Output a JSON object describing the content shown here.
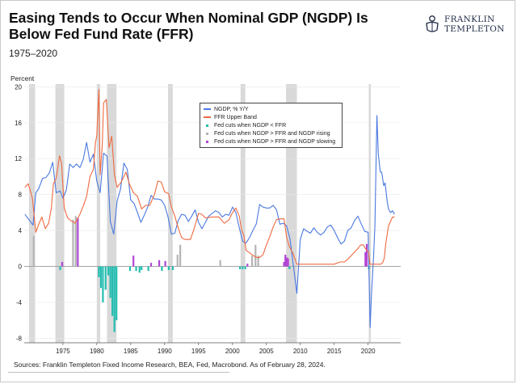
{
  "title": "Easing Tends to Occur When Nominal GDP (NGDP) Is Below Fed Fund Rate (FFR)",
  "subtitle": "1975–2020",
  "logo": {
    "line1": "FRANKLIN",
    "line2": "TEMPLETON",
    "icon": "franklin-seal-icon"
  },
  "source": "Sources: Franklin Templeton Fixed Income Research, BEA, Fed, Macrobond. As of February 28, 2024.",
  "colors": {
    "ngdp": "#4a78e0",
    "ffr": "#ee6a40",
    "cuts_below": "#22bdb0",
    "cuts_rising": "#b4b4b4",
    "cuts_slowing": "#b146d6",
    "recession": "#d9d9d9"
  },
  "chart_data": {
    "type": "line",
    "ylabel": "Percent",
    "ylim": [
      -8.5,
      20.3
    ],
    "xlim": [
      1969.3,
      2024.8
    ],
    "yticks": [
      "20",
      "16",
      "12",
      "8",
      "4",
      "0",
      "-4",
      "-8"
    ],
    "xticks": [
      "1975",
      "1980",
      "1985",
      "1990",
      "1995",
      "2000",
      "2005",
      "2010",
      "2015",
      "2020"
    ],
    "legend": [
      {
        "key": "ngdp",
        "label": "NGDP, % Y/Y",
        "kind": "line"
      },
      {
        "key": "ffr",
        "label": "FFR Upper Band",
        "kind": "line"
      },
      {
        "key": "cuts_below",
        "label": "Fed cuts when NGDP < FFR",
        "kind": "dot"
      },
      {
        "key": "cuts_rising",
        "label": "Fed cuts when NGDP > FFR and NGDP rising",
        "kind": "dot"
      },
      {
        "key": "cuts_slowing",
        "label": "Fed cuts when NGDP > FFR and NGDP slowing",
        "kind": "dot"
      }
    ],
    "recessions": [
      [
        1970.0,
        1970.9
      ],
      [
        1973.9,
        1975.2
      ],
      [
        1980.0,
        1980.5
      ],
      [
        1981.5,
        1982.9
      ],
      [
        1990.5,
        1991.2
      ],
      [
        2001.2,
        2001.9
      ],
      [
        2007.9,
        2009.5
      ],
      [
        2020.1,
        2020.4
      ]
    ],
    "series": [
      {
        "name": "NGDP, % Y/Y",
        "key": "ngdp",
        "x": [
          1969.4,
          1970.0,
          1970.6,
          1971.0,
          1971.4,
          1972.0,
          1972.5,
          1973.0,
          1973.5,
          1974.0,
          1974.6,
          1975.0,
          1975.5,
          1976.0,
          1976.5,
          1977.0,
          1977.5,
          1978.0,
          1978.5,
          1979.0,
          1979.5,
          1980.0,
          1980.5,
          1981.0,
          1981.5,
          1982.0,
          1982.5,
          1983.0,
          1983.5,
          1984.0,
          1984.5,
          1985.0,
          1985.5,
          1986.0,
          1986.5,
          1987.0,
          1987.5,
          1988.0,
          1988.5,
          1989.0,
          1989.5,
          1990.0,
          1990.5,
          1991.0,
          1991.5,
          1992.0,
          1992.5,
          1993.0,
          1993.5,
          1994.0,
          1994.5,
          1995.0,
          1995.5,
          1996.0,
          1996.5,
          1997.0,
          1997.5,
          1998.0,
          1998.5,
          1999.0,
          1999.5,
          2000.0,
          2000.5,
          2001.0,
          2001.5,
          2002.0,
          2002.5,
          2003.0,
          2003.5,
          2004.0,
          2004.5,
          2005.0,
          2005.5,
          2006.0,
          2006.5,
          2007.0,
          2007.5,
          2008.0,
          2008.5,
          2009.0,
          2009.5,
          2010.0,
          2010.5,
          2011.0,
          2011.5,
          2012.0,
          2012.5,
          2013.0,
          2013.5,
          2014.0,
          2014.5,
          2015.0,
          2015.5,
          2016.0,
          2016.5,
          2017.0,
          2017.5,
          2018.0,
          2018.5,
          2019.0,
          2019.5,
          2020.0,
          2020.3,
          2020.5,
          2020.8,
          2021.0,
          2021.3,
          2021.5,
          2021.8,
          2022.0,
          2022.3,
          2022.5,
          2022.8,
          2023.0,
          2023.3,
          2023.6,
          2023.9
        ],
        "values": [
          5.8,
          5.2,
          4.6,
          8.2,
          8.6,
          9.8,
          9.9,
          10.4,
          11.6,
          8.2,
          8.4,
          7.6,
          8.5,
          11.4,
          11.0,
          11.4,
          11.0,
          11.9,
          13.8,
          11.6,
          12.5,
          9.5,
          8.2,
          12.6,
          12.3,
          5.0,
          3.6,
          7.3,
          8.6,
          11.5,
          10.8,
          7.4,
          7.0,
          6.0,
          4.9,
          5.7,
          6.6,
          7.9,
          7.5,
          7.5,
          7.4,
          6.8,
          5.5,
          3.6,
          3.7,
          5.1,
          5.8,
          5.7,
          5.0,
          5.6,
          6.3,
          4.9,
          4.2,
          4.9,
          5.6,
          5.9,
          6.2,
          6.0,
          5.5,
          5.8,
          5.7,
          6.6,
          6.0,
          4.3,
          2.8,
          2.6,
          3.2,
          4.0,
          4.7,
          6.9,
          6.6,
          6.5,
          6.5,
          6.8,
          6.3,
          4.7,
          4.8,
          4.5,
          3.0,
          0.0,
          -3.0,
          3.0,
          4.2,
          3.9,
          3.7,
          4.3,
          3.8,
          3.5,
          3.8,
          4.4,
          4.6,
          4.0,
          3.2,
          2.5,
          2.8,
          4.0,
          4.3,
          5.1,
          5.6,
          4.7,
          3.9,
          3.8,
          -6.8,
          -3.0,
          1.0,
          4.5,
          16.8,
          12.5,
          10.5,
          10.5,
          9.0,
          9.3,
          7.3,
          6.4,
          6.0,
          6.2,
          5.8
        ]
      },
      {
        "name": "FFR Upper Band",
        "key": "ffr",
        "x": [
          1969.4,
          1969.9,
          1970.5,
          1971.0,
          1971.4,
          1971.9,
          1972.4,
          1972.9,
          1973.3,
          1973.6,
          1974.0,
          1974.5,
          1974.8,
          1975.2,
          1975.7,
          1976.2,
          1976.8,
          1977.5,
          1978.0,
          1978.5,
          1979.0,
          1979.5,
          1979.8,
          1980.0,
          1980.3,
          1980.5,
          1980.8,
          1981.0,
          1981.4,
          1981.8,
          1982.2,
          1982.6,
          1983.0,
          1983.6,
          1984.3,
          1984.8,
          1985.4,
          1986.0,
          1986.6,
          1987.2,
          1987.8,
          1988.5,
          1989.0,
          1989.5,
          1990.0,
          1990.6,
          1991.0,
          1991.5,
          1992.0,
          1992.5,
          1993.0,
          1993.8,
          1994.4,
          1995.0,
          1995.5,
          1996.0,
          1997.0,
          1998.0,
          1998.8,
          1999.5,
          2000.0,
          2000.5,
          2001.0,
          2001.3,
          2001.7,
          2002.0,
          2002.9,
          2003.5,
          2004.0,
          2004.5,
          2005.0,
          2005.5,
          2006.0,
          2006.5,
          2007.0,
          2007.6,
          2008.0,
          2008.4,
          2008.9,
          2009.5,
          2012.0,
          2015.0,
          2015.9,
          2016.5,
          2017.0,
          2017.5,
          2018.0,
          2018.5,
          2018.9,
          2019.3,
          2019.6,
          2019.9,
          2020.1,
          2020.25,
          2021.0,
          2021.9,
          2022.2,
          2022.4,
          2022.6,
          2022.8,
          2023.0,
          2023.3,
          2023.6,
          2023.9
        ],
        "values": [
          8.8,
          9.2,
          7.6,
          3.8,
          4.6,
          5.5,
          4.2,
          4.8,
          6.5,
          9.2,
          9.8,
          12.3,
          11.5,
          6.5,
          5.4,
          5.1,
          4.8,
          5.8,
          6.7,
          7.8,
          10.0,
          10.8,
          13.8,
          14.5,
          19.7,
          10.2,
          13.5,
          18.2,
          18.6,
          13.2,
          14.5,
          10.2,
          8.8,
          9.4,
          10.5,
          9.2,
          8.2,
          7.8,
          6.4,
          6.8,
          6.8,
          8.0,
          9.5,
          9.4,
          8.3,
          8.1,
          6.6,
          5.6,
          4.3,
          3.2,
          3.0,
          3.0,
          4.3,
          5.9,
          5.8,
          5.4,
          5.5,
          5.5,
          4.8,
          5.2,
          6.0,
          6.5,
          5.6,
          4.2,
          3.4,
          1.8,
          1.3,
          1.0,
          1.0,
          1.3,
          2.4,
          3.3,
          4.4,
          5.2,
          5.3,
          5.3,
          3.2,
          2.2,
          1.5,
          0.25,
          0.25,
          0.25,
          0.5,
          0.5,
          0.8,
          1.2,
          1.6,
          2.0,
          2.4,
          2.4,
          2.0,
          1.7,
          1.6,
          0.25,
          0.25,
          0.25,
          0.5,
          1.0,
          2.5,
          3.5,
          4.5,
          5.0,
          5.5,
          5.5
        ]
      }
    ],
    "cut_bars": [
      {
        "category": "cuts_rising",
        "x": 1970.7,
        "value": 3.4
      },
      {
        "category": "cuts_below",
        "x": 1974.6,
        "value": -0.4
      },
      {
        "category": "cuts_slowing",
        "x": 1974.9,
        "value": 0.5
      },
      {
        "category": "cuts_rising",
        "x": 1976.5,
        "value": 5.2
      },
      {
        "category": "cuts_rising",
        "x": 1976.9,
        "value": 5.6
      },
      {
        "category": "cuts_slowing",
        "x": 1977.2,
        "value": 5.4
      },
      {
        "category": "cuts_below",
        "x": 1980.3,
        "value": -1.2
      },
      {
        "category": "cuts_below",
        "x": 1980.6,
        "value": -2.4
      },
      {
        "category": "cuts_below",
        "x": 1980.9,
        "value": -4.0
      },
      {
        "category": "cuts_below",
        "x": 1981.3,
        "value": -2.6
      },
      {
        "category": "cuts_below",
        "x": 1981.7,
        "value": -1.0
      },
      {
        "category": "cuts_below",
        "x": 1982.0,
        "value": -3.5
      },
      {
        "category": "cuts_below",
        "x": 1982.3,
        "value": -5.5
      },
      {
        "category": "cuts_below",
        "x": 1982.6,
        "value": -7.3
      },
      {
        "category": "cuts_below",
        "x": 1982.9,
        "value": -6.0
      },
      {
        "category": "cuts_below",
        "x": 1984.9,
        "value": -0.5
      },
      {
        "category": "cuts_slowing",
        "x": 1985.4,
        "value": 1.2
      },
      {
        "category": "cuts_below",
        "x": 1985.8,
        "value": -0.5
      },
      {
        "category": "cuts_below",
        "x": 1986.3,
        "value": -0.7
      },
      {
        "category": "cuts_below",
        "x": 1986.6,
        "value": -0.4
      },
      {
        "category": "cuts_below",
        "x": 1987.6,
        "value": -0.5
      },
      {
        "category": "cuts_slowing",
        "x": 1988.0,
        "value": 0.4
      },
      {
        "category": "cuts_slowing",
        "x": 1989.2,
        "value": 0.7
      },
      {
        "category": "cuts_below",
        "x": 1989.6,
        "value": -0.5
      },
      {
        "category": "cuts_slowing",
        "x": 1990.1,
        "value": 0.6
      },
      {
        "category": "cuts_below",
        "x": 1990.6,
        "value": -0.4
      },
      {
        "category": "cuts_below",
        "x": 1991.2,
        "value": -0.4
      },
      {
        "category": "cuts_rising",
        "x": 1991.9,
        "value": 1.3
      },
      {
        "category": "cuts_rising",
        "x": 1992.3,
        "value": 2.4
      },
      {
        "category": "cuts_rising",
        "x": 1998.2,
        "value": 0.7
      },
      {
        "category": "cuts_below",
        "x": 2001.1,
        "value": -0.3
      },
      {
        "category": "cuts_below",
        "x": 2001.5,
        "value": -0.3
      },
      {
        "category": "cuts_below",
        "x": 2001.9,
        "value": -0.3
      },
      {
        "category": "cuts_slowing",
        "x": 2002.2,
        "value": 0.3
      },
      {
        "category": "cuts_rising",
        "x": 2002.9,
        "value": 1.2
      },
      {
        "category": "cuts_rising",
        "x": 2003.4,
        "value": 2.4
      },
      {
        "category": "cuts_rising",
        "x": 2003.8,
        "value": 1.2
      },
      {
        "category": "cuts_slowing",
        "x": 2007.6,
        "value": 0.5
      },
      {
        "category": "cuts_slowing",
        "x": 2007.8,
        "value": 1.3
      },
      {
        "category": "cuts_slowing",
        "x": 2008.0,
        "value": 1.0
      },
      {
        "category": "cuts_slowing",
        "x": 2008.2,
        "value": 0.9
      },
      {
        "category": "cuts_below",
        "x": 2008.4,
        "value": -0.3
      },
      {
        "category": "cuts_slowing",
        "x": 2019.6,
        "value": 1.6
      },
      {
        "category": "cuts_slowing",
        "x": 2019.8,
        "value": 2.5
      },
      {
        "category": "cuts_below",
        "x": 2020.1,
        "value": -0.3
      }
    ]
  }
}
